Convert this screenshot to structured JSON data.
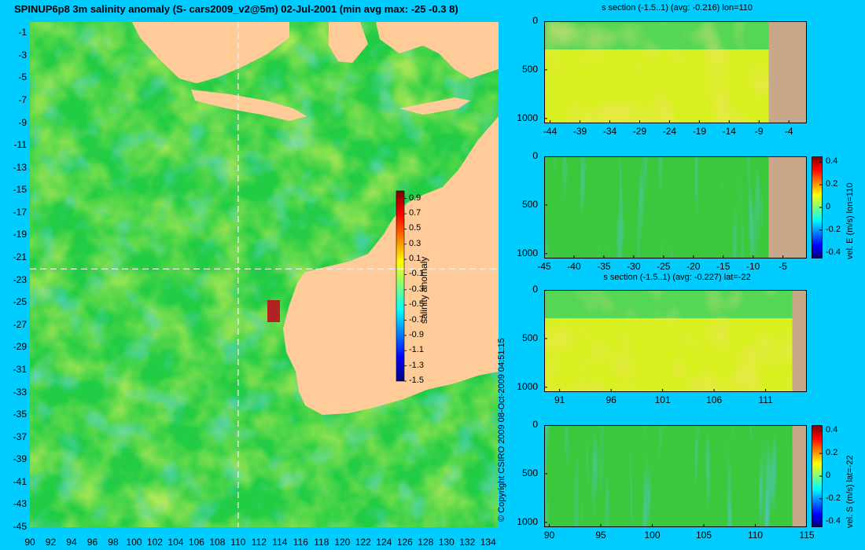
{
  "title": "SPINUP6p8 3m salinity anomaly (S- cars2009_v2@5m) 02-Jul-2001 (min avg max: -25 -0.3 8)",
  "copyright": "© Copyright CSIRO 2009  08-Oct-2009 04:51:15",
  "colors": {
    "background": "#00ccff",
    "land": "#ffcc99",
    "section_land": "#c8a888",
    "cross_line": "#f0f0f0"
  },
  "chart_data": [
    {
      "type": "heatmap",
      "name": "map",
      "xlim": [
        90,
        135
      ],
      "ylim": [
        -45,
        0
      ],
      "x_ticks": [
        90,
        92,
        94,
        96,
        98,
        100,
        102,
        104,
        106,
        108,
        110,
        112,
        114,
        116,
        118,
        120,
        122,
        124,
        126,
        128,
        130,
        132,
        134
      ],
      "y_ticks": [
        -1,
        -3,
        -5,
        -7,
        -9,
        -11,
        -13,
        -15,
        -17,
        -19,
        -21,
        -23,
        -25,
        -27,
        -29,
        -31,
        -33,
        -35,
        -37,
        -39,
        -41,
        -43,
        -45
      ],
      "section_lon": 110,
      "section_lat": -22,
      "colorbar": {
        "label": "salinity anomaly",
        "ticks": [
          "0.9",
          "0.7",
          "0.5",
          "0.3",
          "0.1",
          "-0.1",
          "-0.3",
          "-0.5",
          "-0.7",
          "-0.9",
          "-1.1",
          "-1.3",
          "-1.5"
        ],
        "range": [
          -1.5,
          1.0
        ]
      }
    },
    {
      "type": "heatmap",
      "name": "salinity-lon-section",
      "title": "s section (-1.5..1) (avg: -0.216) lon=110",
      "x_ticks": [
        "-44",
        "-39",
        "-34",
        "-29",
        "-24",
        "-19",
        "-14",
        "-9",
        "-4"
      ],
      "y_ticks": [
        "0",
        "500",
        "1000"
      ],
      "xlim": [
        -45,
        -1
      ],
      "ylim": [
        1050,
        0
      ]
    },
    {
      "type": "heatmap",
      "name": "vel-east-lon-section",
      "x_ticks": [
        "-45",
        "-40",
        "-35",
        "-30",
        "-25",
        "-20",
        "-15",
        "-10",
        "-5"
      ],
      "y_ticks": [
        "0",
        "500",
        "1000"
      ],
      "xlim": [
        -45,
        -1
      ],
      "ylim": [
        1050,
        0
      ],
      "colorbar": {
        "label": "vel. E (m/s) lon=110",
        "ticks": [
          "0.4",
          "0.2",
          "0",
          "-0.2",
          "-0.4"
        ],
        "range": [
          -0.45,
          0.45
        ]
      }
    },
    {
      "type": "heatmap",
      "name": "salinity-lat-section",
      "title": "s section (-1.5..1) (avg: -0.227) lat=-22",
      "x_ticks": [
        "91",
        "96",
        "101",
        "106",
        "111"
      ],
      "y_ticks": [
        "0",
        "500",
        "1000"
      ],
      "xlim": [
        89.5,
        115
      ],
      "ylim": [
        1050,
        0
      ]
    },
    {
      "type": "heatmap",
      "name": "vel-south-lat-section",
      "x_ticks": [
        "90",
        "95",
        "100",
        "105",
        "110",
        "115"
      ],
      "y_ticks": [
        "0",
        "500",
        "1000"
      ],
      "xlim": [
        89.5,
        115
      ],
      "ylim": [
        1050,
        0
      ],
      "colorbar": {
        "label": "vel. S (m/s) lat=-22",
        "ticks": [
          "0.4",
          "0.2",
          "0",
          "-0.2",
          "-0.4"
        ],
        "range": [
          -0.45,
          0.45
        ]
      }
    }
  ]
}
